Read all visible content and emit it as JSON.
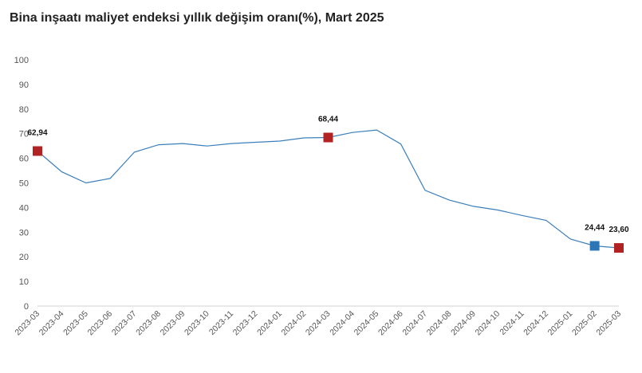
{
  "chart_data": {
    "type": "line",
    "title": "Bina inşaatı maliyet endeksi yıllık değişim oranı(%), Mart 2025",
    "xlabel": "",
    "ylabel": "",
    "ylim": [
      0,
      100
    ],
    "yticks": [
      0,
      10,
      20,
      30,
      40,
      50,
      60,
      70,
      80,
      90,
      100
    ],
    "grid": false,
    "legend": "none",
    "categories": [
      "2023-03",
      "2023-04",
      "2023-05",
      "2023-06",
      "2023-07",
      "2023-08",
      "2023-09",
      "2023-10",
      "2023-11",
      "2023-12",
      "2024-01",
      "2024-02",
      "2024-03",
      "2024-04",
      "2024-05",
      "2024-06",
      "2024-07",
      "2024-08",
      "2024-09",
      "2024-10",
      "2024-11",
      "2024-12",
      "2025-01",
      "2025-02",
      "2025-03"
    ],
    "series": [
      {
        "values": [
          62.94,
          54.5,
          50.0,
          51.8,
          62.5,
          65.5,
          66.0,
          65.0,
          66.0,
          66.5,
          67.0,
          68.3,
          68.44,
          70.5,
          71.5,
          65.8,
          47.0,
          43.0,
          40.5,
          39.0,
          36.8,
          34.8,
          27.2,
          24.44,
          23.6
        ],
        "color": "#3b7fba"
      }
    ],
    "markers": [
      {
        "category": "2023-03",
        "value": 62.94,
        "label": "62,94",
        "color": "#b22222"
      },
      {
        "category": "2024-03",
        "value": 68.44,
        "label": "68,44",
        "color": "#b22222"
      },
      {
        "category": "2025-02",
        "value": 24.44,
        "label": "24,44",
        "color": "#2e75b6"
      },
      {
        "category": "2025-03",
        "value": 23.6,
        "label": "23,60",
        "color": "#b22222"
      }
    ]
  }
}
